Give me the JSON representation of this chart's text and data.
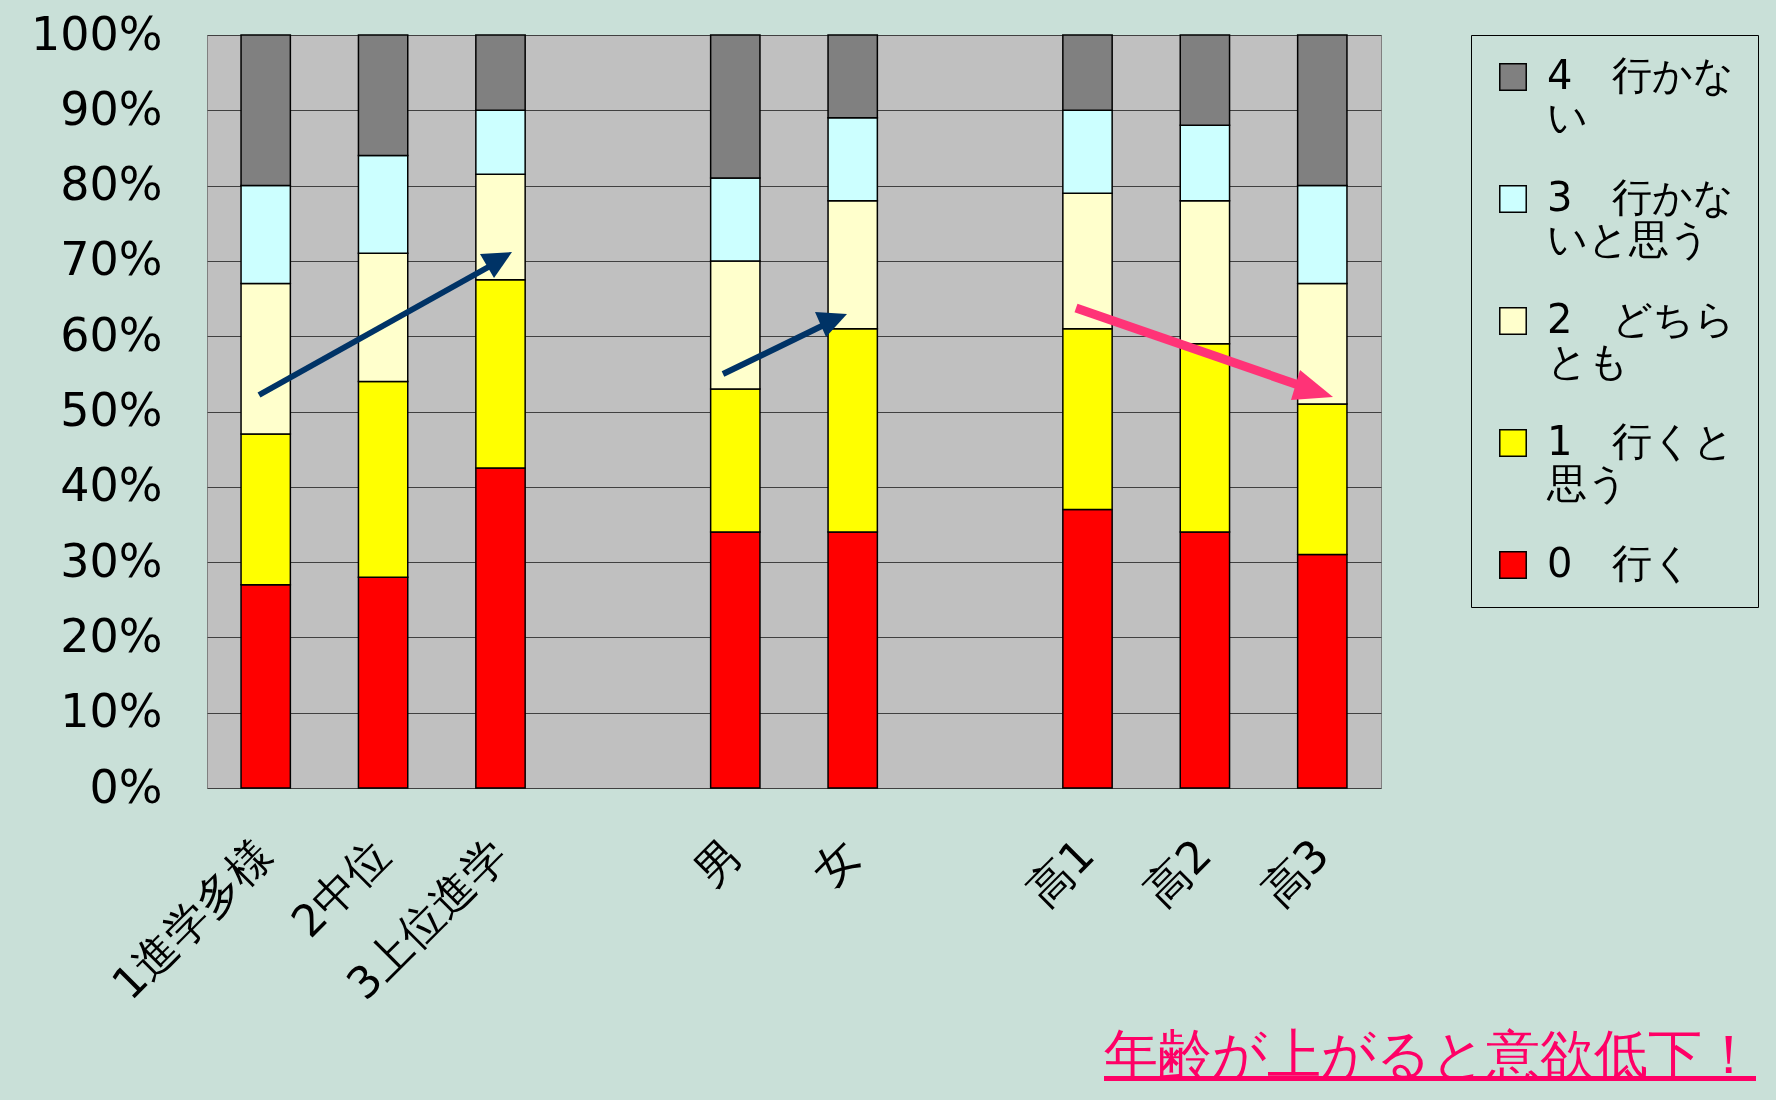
{
  "chart_data": {
    "type": "bar",
    "stacked": true,
    "categories": [
      "1進学多様",
      "2中位",
      "3上位進学",
      null,
      "男",
      "女",
      null,
      "高1",
      "高2",
      "高3"
    ],
    "series": [
      {
        "name": "0　行く",
        "color": "#ff0000",
        "values": [
          27,
          28,
          42.5,
          null,
          34,
          34,
          null,
          37,
          34,
          31
        ]
      },
      {
        "name": "1　行くと思う",
        "color": "#ffff00",
        "values": [
          20,
          26,
          25,
          null,
          19,
          27,
          null,
          24,
          25,
          20
        ]
      },
      {
        "name": "2　どちらとも",
        "color": "#ffffcc",
        "values": [
          20,
          17,
          14,
          null,
          17,
          17,
          null,
          18,
          19,
          16
        ]
      },
      {
        "name": "3　行かないと思う",
        "color": "#ccffff",
        "values": [
          13,
          13,
          8.5,
          null,
          11,
          11,
          null,
          11,
          10,
          13
        ]
      },
      {
        "name": "4　行かない",
        "color": "#808080",
        "values": [
          20,
          16,
          10,
          null,
          19,
          11,
          null,
          10,
          12,
          20
        ]
      }
    ],
    "ylim": [
      0,
      100
    ],
    "yticks": [
      {
        "value": 0,
        "label": "0%"
      },
      {
        "value": 10,
        "label": "10%"
      },
      {
        "value": 20,
        "label": "20%"
      },
      {
        "value": 30,
        "label": "30%"
      },
      {
        "value": 40,
        "label": "40%"
      },
      {
        "value": 50,
        "label": "50%"
      },
      {
        "value": 60,
        "label": "60%"
      },
      {
        "value": 70,
        "label": "70%"
      },
      {
        "value": 80,
        "label": "80%"
      },
      {
        "value": 90,
        "label": "90%"
      },
      {
        "value": 100,
        "label": "100%"
      }
    ],
    "grid": "y",
    "legend": "right",
    "annotations": [
      "年齢が上がると意欲低下！"
    ]
  }
}
